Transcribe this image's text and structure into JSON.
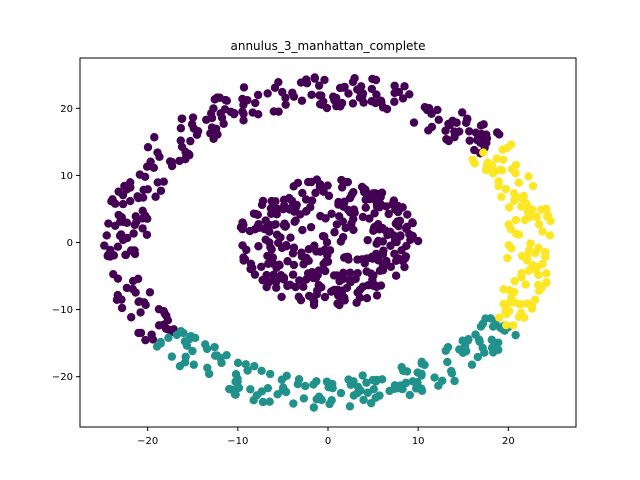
{
  "chart_data": {
    "type": "scatter",
    "title": "annulus_3_manhattan_complete",
    "xlabel": "",
    "ylabel": "",
    "xlim": [
      -27.5,
      27.5
    ],
    "ylim": [
      -27.5,
      27.5
    ],
    "xticks": [
      -20,
      -10,
      0,
      10,
      20
    ],
    "yticks": [
      -20,
      -10,
      0,
      10,
      20
    ],
    "xtick_labels": [
      "−20",
      "−10",
      "0",
      "10",
      "20"
    ],
    "ytick_labels": [
      "−20",
      "−10",
      "0",
      "10",
      "20"
    ],
    "grid": false,
    "colors": {
      "cluster_0": "#440154",
      "cluster_1": "#21918c",
      "cluster_2": "#fde725"
    },
    "series": [
      {
        "name": "cluster-0-purple",
        "color": "#440154",
        "shapes": [
          {
            "kind": "disk",
            "cx": 0,
            "cy": 0,
            "r_min": 0,
            "r_max": 10,
            "sx": 1.0,
            "sy": 0.95,
            "theta_start": 0,
            "theta_end": 360,
            "n": 330
          },
          {
            "kind": "ring",
            "cx": 0,
            "cy": 0,
            "r_min": 20,
            "r_max": 25,
            "sx": 1.0,
            "sy": 1.0,
            "theta_start": 38,
            "theta_end": 218,
            "n": 260
          }
        ]
      },
      {
        "name": "cluster-1-teal",
        "color": "#21918c",
        "shapes": [
          {
            "kind": "ring",
            "cx": 0,
            "cy": 0,
            "r_min": 20,
            "r_max": 25,
            "sx": 1.0,
            "sy": 1.0,
            "theta_start": 218,
            "theta_end": 328,
            "n": 160
          }
        ]
      },
      {
        "name": "cluster-2-yellow",
        "color": "#fde725",
        "shapes": [
          {
            "kind": "ring",
            "cx": 0,
            "cy": 0,
            "r_min": 20,
            "r_max": 25,
            "sx": 1.0,
            "sy": 1.0,
            "theta_start": -32,
            "theta_end": 38,
            "n": 110
          }
        ]
      }
    ]
  }
}
